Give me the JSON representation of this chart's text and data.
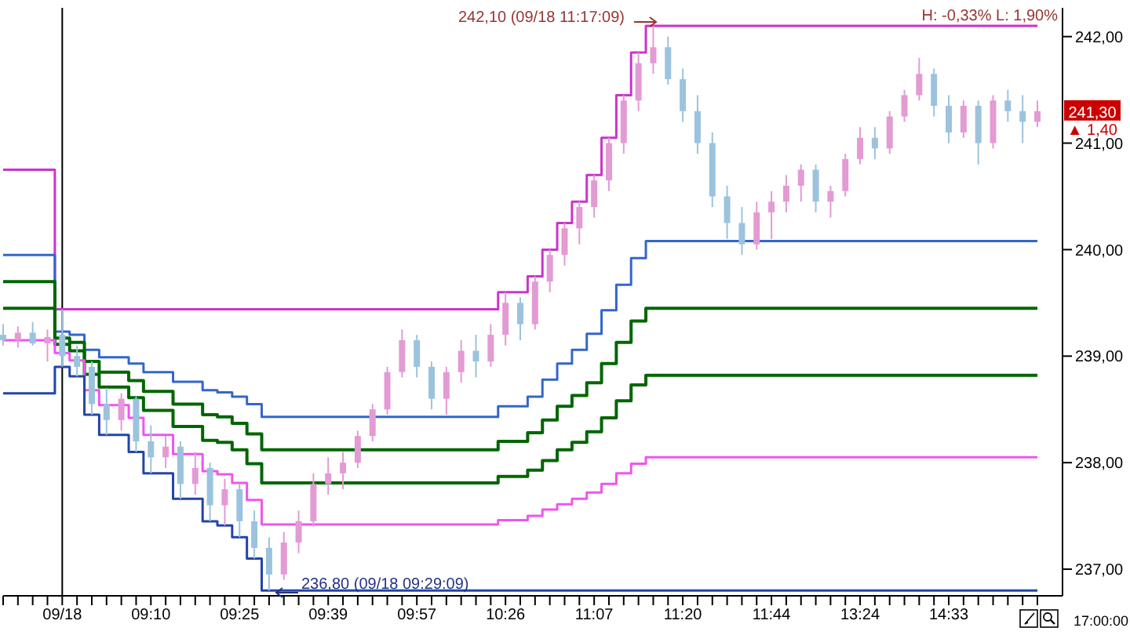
{
  "chart_data": {
    "type": "candlestick",
    "categories": [
      null,
      null,
      null,
      null,
      "09/18",
      null,
      null,
      null,
      null,
      null,
      "09:10",
      null,
      null,
      null,
      null,
      null,
      "09:25",
      null,
      null,
      null,
      null,
      null,
      "09:39",
      null,
      null,
      null,
      null,
      null,
      "09:57",
      null,
      null,
      null,
      null,
      null,
      "10:26",
      null,
      null,
      null,
      null,
      null,
      "11:07",
      null,
      null,
      null,
      null,
      null,
      "11:20",
      null,
      null,
      null,
      null,
      null,
      "11:44",
      null,
      null,
      null,
      null,
      null,
      "13:24",
      null,
      null,
      null,
      null,
      null,
      "14:33",
      null,
      null,
      null,
      null,
      null,
      null
    ],
    "ohlc": [
      [
        239.2,
        239.3,
        239.1,
        239.15
      ],
      [
        239.15,
        239.28,
        239.08,
        239.22
      ],
      [
        239.22,
        239.32,
        239.1,
        239.12
      ],
      [
        239.12,
        239.25,
        238.95,
        239.18
      ],
      [
        239.2,
        239.44,
        238.9,
        239.0
      ],
      [
        239.0,
        239.1,
        238.81,
        238.9
      ],
      [
        238.9,
        238.95,
        238.45,
        238.55
      ],
      [
        238.55,
        238.7,
        238.26,
        238.4
      ],
      [
        238.4,
        238.65,
        238.3,
        238.6
      ],
      [
        238.6,
        238.62,
        238.1,
        238.2
      ],
      [
        238.2,
        238.35,
        237.9,
        238.05
      ],
      [
        238.05,
        238.25,
        237.95,
        238.15
      ],
      [
        238.15,
        238.2,
        237.66,
        237.8
      ],
      [
        237.8,
        238.1,
        237.7,
        237.95
      ],
      [
        237.95,
        238.0,
        237.45,
        237.6
      ],
      [
        237.6,
        237.85,
        237.41,
        237.75
      ],
      [
        237.75,
        237.8,
        237.3,
        237.45
      ],
      [
        237.45,
        237.55,
        237.1,
        237.2
      ],
      [
        237.2,
        237.3,
        236.8,
        236.95
      ],
      [
        236.95,
        237.35,
        236.9,
        237.25
      ],
      [
        237.25,
        237.55,
        237.15,
        237.45
      ],
      [
        237.45,
        237.9,
        237.4,
        237.8
      ],
      [
        237.8,
        238.05,
        237.7,
        237.9
      ],
      [
        237.9,
        238.1,
        237.75,
        238.0
      ],
      [
        238.0,
        238.3,
        237.95,
        238.25
      ],
      [
        238.25,
        238.55,
        238.2,
        238.5
      ],
      [
        238.5,
        238.9,
        238.45,
        238.85
      ],
      [
        238.85,
        239.25,
        238.8,
        239.15
      ],
      [
        239.15,
        239.2,
        238.8,
        238.9
      ],
      [
        238.9,
        238.95,
        238.5,
        238.6
      ],
      [
        238.6,
        238.9,
        238.45,
        238.85
      ],
      [
        238.85,
        239.15,
        238.75,
        239.05
      ],
      [
        239.05,
        239.2,
        238.8,
        238.95
      ],
      [
        238.95,
        239.3,
        238.9,
        239.2
      ],
      [
        239.2,
        239.6,
        239.1,
        239.5
      ],
      [
        239.5,
        239.55,
        239.15,
        239.3
      ],
      [
        239.3,
        239.75,
        239.25,
        239.7
      ],
      [
        239.7,
        240.0,
        239.6,
        239.95
      ],
      [
        239.95,
        240.25,
        239.85,
        240.2
      ],
      [
        240.2,
        240.45,
        240.05,
        240.4
      ],
      [
        240.4,
        240.7,
        240.3,
        240.65
      ],
      [
        240.65,
        241.05,
        240.55,
        241.0
      ],
      [
        241.0,
        241.45,
        240.9,
        241.4
      ],
      [
        241.4,
        241.85,
        241.3,
        241.75
      ],
      [
        241.75,
        242.1,
        241.65,
        241.9
      ],
      [
        241.9,
        242.0,
        241.55,
        241.6
      ],
      [
        241.6,
        241.7,
        241.2,
        241.3
      ],
      [
        241.3,
        241.45,
        240.9,
        241.0
      ],
      [
        241.0,
        241.1,
        240.4,
        240.5
      ],
      [
        240.5,
        240.6,
        240.1,
        240.25
      ],
      [
        240.25,
        240.4,
        239.95,
        240.05
      ],
      [
        240.05,
        240.45,
        240.0,
        240.35
      ],
      [
        240.35,
        240.55,
        240.1,
        240.45
      ],
      [
        240.45,
        240.7,
        240.35,
        240.6
      ],
      [
        240.6,
        240.8,
        240.45,
        240.75
      ],
      [
        240.75,
        240.8,
        240.35,
        240.45
      ],
      [
        240.45,
        240.6,
        240.3,
        240.55
      ],
      [
        240.55,
        240.9,
        240.5,
        240.85
      ],
      [
        240.85,
        241.15,
        240.8,
        241.05
      ],
      [
        241.05,
        241.15,
        240.85,
        240.95
      ],
      [
        240.95,
        241.3,
        240.9,
        241.25
      ],
      [
        241.25,
        241.5,
        241.2,
        241.45
      ],
      [
        241.45,
        241.8,
        241.4,
        241.65
      ],
      [
        241.65,
        241.7,
        241.25,
        241.35
      ],
      [
        241.35,
        241.45,
        241.0,
        241.1
      ],
      [
        241.1,
        241.4,
        241.05,
        241.35
      ],
      [
        241.35,
        241.4,
        240.8,
        241.0
      ],
      [
        241.0,
        241.45,
        240.95,
        241.4
      ],
      [
        241.4,
        241.5,
        241.2,
        241.3
      ],
      [
        241.3,
        241.45,
        241.0,
        241.2
      ],
      [
        241.2,
        241.4,
        241.15,
        241.3
      ]
    ],
    "colors": [
      "#9cc3de",
      "#e39bd3",
      "#9cc3de",
      "#e39bd3",
      "#9cc3de",
      "#9cc3de",
      "#9cc3de",
      "#9cc3de",
      "#e39bd3",
      "#9cc3de",
      "#9cc3de",
      "#e39bd3",
      "#9cc3de",
      "#e39bd3",
      "#9cc3de",
      "#e39bd3",
      "#9cc3de",
      "#9cc3de",
      "#9cc3de",
      "#e39bd3",
      "#e39bd3",
      "#e39bd3",
      "#e39bd3",
      "#e39bd3",
      "#e39bd3",
      "#e39bd3",
      "#e39bd3",
      "#e39bd3",
      "#9cc3de",
      "#9cc3de",
      "#e39bd3",
      "#e39bd3",
      "#9cc3de",
      "#e39bd3",
      "#e39bd3",
      "#9cc3de",
      "#e39bd3",
      "#e39bd3",
      "#e39bd3",
      "#e39bd3",
      "#e39bd3",
      "#e39bd3",
      "#e39bd3",
      "#e39bd3",
      "#e39bd3",
      "#9cc3de",
      "#9cc3de",
      "#9cc3de",
      "#9cc3de",
      "#9cc3de",
      "#9cc3de",
      "#e39bd3",
      "#e39bd3",
      "#e39bd3",
      "#e39bd3",
      "#9cc3de",
      "#e39bd3",
      "#e39bd3",
      "#e39bd3",
      "#9cc3de",
      "#e39bd3",
      "#e39bd3",
      "#e39bd3",
      "#9cc3de",
      "#9cc3de",
      "#e39bd3",
      "#9cc3de",
      "#e39bd3",
      "#9cc3de",
      "#9cc3de",
      "#e39bd3"
    ],
    "series": [
      {
        "type": "step",
        "color": "#cc33cc",
        "values": [
          240.75,
          240.75,
          240.75,
          240.75,
          239.44,
          239.44,
          239.44,
          239.44,
          239.44,
          239.44,
          239.44,
          239.44,
          239.44,
          239.44,
          239.44,
          239.44,
          239.44,
          239.44,
          239.44,
          239.44,
          239.44,
          239.44,
          239.44,
          239.44,
          239.44,
          239.44,
          239.44,
          239.44,
          239.44,
          239.44,
          239.44,
          239.44,
          239.44,
          239.44,
          239.6,
          239.6,
          239.75,
          240,
          240.25,
          240.45,
          240.7,
          241.05,
          241.45,
          241.85,
          242.1,
          242.1,
          242.1,
          242.1,
          242.1,
          242.1,
          242.1,
          242.1,
          242.1,
          242.1,
          242.1,
          242.1,
          242.1,
          242.1,
          242.1,
          242.1,
          242.1,
          242.1,
          242.1,
          242.1,
          242.1,
          242.1,
          242.1,
          242.1,
          242.1,
          242.1,
          242.1
        ]
      },
      {
        "type": "step",
        "color": "#3366cc",
        "values": [
          239.95,
          239.95,
          239.95,
          239.95,
          239.23,
          239.2,
          239.06,
          238.99,
          238.99,
          238.93,
          238.85,
          238.85,
          238.76,
          238.76,
          238.68,
          238.66,
          238.62,
          238.55,
          238.43,
          238.43,
          238.43,
          238.43,
          238.43,
          238.43,
          238.43,
          238.43,
          238.43,
          238.43,
          238.43,
          238.43,
          238.43,
          238.43,
          238.43,
          238.43,
          238.53,
          238.53,
          238.62,
          238.78,
          238.93,
          239.06,
          239.21,
          239.43,
          239.67,
          239.92,
          240.08,
          240.08,
          240.08,
          240.08,
          240.08,
          240.08,
          240.08,
          240.08,
          240.08,
          240.08,
          240.08,
          240.08,
          240.08,
          240.08,
          240.08,
          240.08,
          240.08,
          240.08,
          240.08,
          240.08,
          240.08,
          240.08,
          240.08,
          240.08,
          240.08,
          240.08,
          240.08
        ]
      },
      {
        "type": "step",
        "color": "#006600",
        "values": [
          239.7,
          239.7,
          239.7,
          239.7,
          239.17,
          239.13,
          238.95,
          238.85,
          238.85,
          238.77,
          238.67,
          238.67,
          238.55,
          238.55,
          238.45,
          238.43,
          238.37,
          238.27,
          238.12,
          238.12,
          238.12,
          238.12,
          238.12,
          238.12,
          238.12,
          238.12,
          238.12,
          238.12,
          238.12,
          238.12,
          238.12,
          238.12,
          238.12,
          238.12,
          238.2,
          238.2,
          238.28,
          238.4,
          238.53,
          238.63,
          238.75,
          238.93,
          239.13,
          239.33,
          239.45,
          239.45,
          239.45,
          239.45,
          239.45,
          239.45,
          239.45,
          239.45,
          239.45,
          239.45,
          239.45,
          239.45,
          239.45,
          239.45,
          239.45,
          239.45,
          239.45,
          239.45,
          239.45,
          239.45,
          239.45,
          239.45,
          239.45,
          239.45,
          239.45,
          239.45,
          239.45
        ]
      },
      {
        "type": "step",
        "color": "#006600",
        "values": [
          239.45,
          239.45,
          239.45,
          239.45,
          239.11,
          239.05,
          238.83,
          238.71,
          238.71,
          238.61,
          238.49,
          238.49,
          238.34,
          238.34,
          238.21,
          238.19,
          238.12,
          237.99,
          237.81,
          237.81,
          237.81,
          237.81,
          237.81,
          237.81,
          237.81,
          237.81,
          237.81,
          237.81,
          237.81,
          237.81,
          237.81,
          237.81,
          237.81,
          237.81,
          237.87,
          237.87,
          237.93,
          238.02,
          238.12,
          238.19,
          238.29,
          238.42,
          238.58,
          238.73,
          238.82,
          238.82,
          238.82,
          238.82,
          238.82,
          238.82,
          238.82,
          238.82,
          238.82,
          238.82,
          238.82,
          238.82,
          238.82,
          238.82,
          238.82,
          238.82,
          238.82,
          238.82,
          238.82,
          238.82,
          238.82,
          238.82,
          238.82,
          238.82,
          238.82,
          238.82,
          238.82
        ]
      },
      {
        "type": "step",
        "color": "#ee55ee",
        "values": [
          239.15,
          239.15,
          239.15,
          239.15,
          239.03,
          238.96,
          238.68,
          238.54,
          238.54,
          238.42,
          238.26,
          238.26,
          238.08,
          238.08,
          237.92,
          237.89,
          237.81,
          237.65,
          237.42,
          237.42,
          237.42,
          237.42,
          237.42,
          237.42,
          237.42,
          237.42,
          237.42,
          237.42,
          237.42,
          237.42,
          237.42,
          237.42,
          237.42,
          237.42,
          237.46,
          237.46,
          237.5,
          237.56,
          237.61,
          237.66,
          237.72,
          237.8,
          237.9,
          237.99,
          238.05,
          238.05,
          238.05,
          238.05,
          238.05,
          238.05,
          238.05,
          238.05,
          238.05,
          238.05,
          238.05,
          238.05,
          238.05,
          238.05,
          238.05,
          238.05,
          238.05,
          238.05,
          238.05,
          238.05,
          238.05,
          238.05,
          238.05,
          238.05,
          238.05,
          238.05,
          238.05
        ]
      },
      {
        "type": "step",
        "color": "#2244aa",
        "values": [
          238.65,
          238.65,
          238.65,
          238.65,
          238.9,
          238.81,
          238.45,
          238.26,
          238.26,
          238.1,
          237.9,
          237.9,
          237.66,
          237.66,
          237.45,
          237.41,
          237.3,
          237.1,
          236.8,
          236.8,
          236.8,
          236.8,
          236.8,
          236.8,
          236.8,
          236.8,
          236.8,
          236.8,
          236.8,
          236.8,
          236.8,
          236.8,
          236.8,
          236.8,
          236.8,
          236.8,
          236.8,
          236.8,
          236.8,
          236.8,
          236.8,
          236.8,
          236.8,
          236.8,
          236.8,
          236.8,
          236.8,
          236.8,
          236.8,
          236.8,
          236.8,
          236.8,
          236.8,
          236.8,
          236.8,
          236.8,
          236.8,
          236.8,
          236.8,
          236.8,
          236.8,
          236.8,
          236.8,
          236.8,
          236.8,
          236.8,
          236.8,
          236.8,
          236.8,
          236.8,
          236.8
        ]
      }
    ],
    "ylim": [
      236.75,
      242.27
    ],
    "yticks": [
      {
        "value": 237,
        "label": "237,00"
      },
      {
        "value": 238,
        "label": "238,00"
      },
      {
        "value": 239,
        "label": "239,00"
      },
      {
        "value": 240,
        "label": "240,00"
      },
      {
        "value": 241,
        "label": "241,00"
      },
      {
        "value": 242,
        "label": "242,00"
      }
    ],
    "ref_lines": [
      {
        "axis": "x",
        "value": "09/18",
        "color": "#000000"
      }
    ],
    "annotations": [
      "242,10 (09/18 11:17:09)",
      {
        "text": "236,80 (09/18 09:29:09)",
        "y": 236.8
      },
      "H: -0,33%  L: 1,90%",
      "241,30",
      "▲ 1,40",
      "17:00:00"
    ],
    "grid": false,
    "legend": false
  }
}
